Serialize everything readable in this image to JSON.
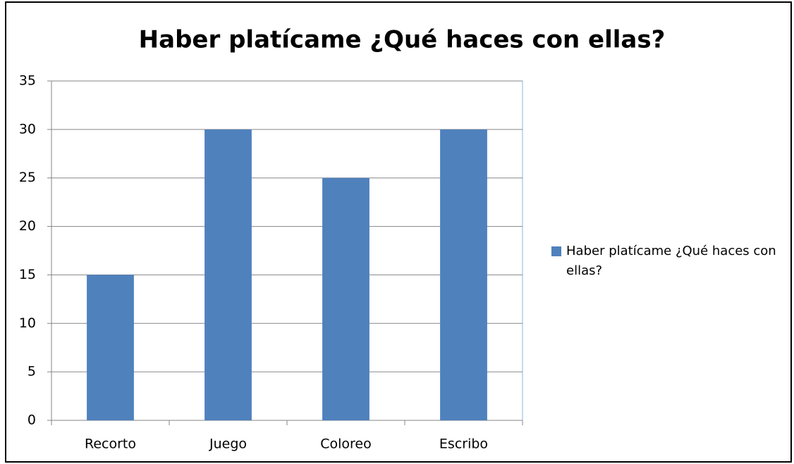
{
  "chart_data": {
    "type": "bar",
    "title": "Haber platícame ¿Qué haces con ellas?",
    "categories": [
      "Recorto",
      "Juego",
      "Coloreo",
      "Escribo"
    ],
    "series": [
      {
        "name": "Haber platícame ¿Qué haces con ellas?",
        "color": "#4f81bd",
        "values": [
          15,
          30,
          25,
          30
        ]
      }
    ],
    "ylim": [
      0,
      35
    ],
    "yticks": [
      0,
      5,
      10,
      15,
      20,
      25,
      30,
      35
    ],
    "grid": true,
    "legend": "right"
  }
}
